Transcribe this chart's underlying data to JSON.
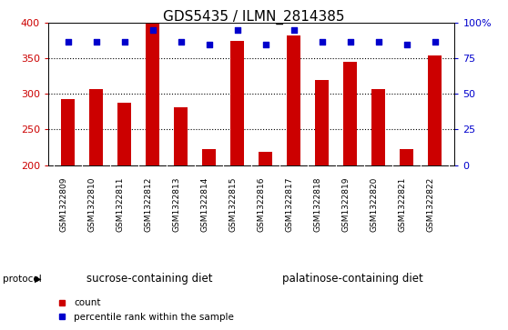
{
  "title": "GDS5435 / ILMN_2814385",
  "samples": [
    "GSM1322809",
    "GSM1322810",
    "GSM1322811",
    "GSM1322812",
    "GSM1322813",
    "GSM1322814",
    "GSM1322815",
    "GSM1322816",
    "GSM1322817",
    "GSM1322818",
    "GSM1322819",
    "GSM1322820",
    "GSM1322821",
    "GSM1322822"
  ],
  "counts": [
    293,
    307,
    288,
    400,
    282,
    222,
    375,
    218,
    383,
    320,
    345,
    307,
    222,
    354
  ],
  "percentiles": [
    87,
    87,
    87,
    95,
    87,
    85,
    95,
    85,
    95,
    87,
    87,
    87,
    85,
    87
  ],
  "groups": [
    {
      "label": "sucrose-containing diet",
      "start": 0,
      "end": 7
    },
    {
      "label": "palatinose-containing diet",
      "start": 7,
      "end": 14
    }
  ],
  "bar_color": "#CC0000",
  "dot_color": "#0000CC",
  "ylim_left": [
    200,
    400
  ],
  "ylim_right": [
    0,
    100
  ],
  "yticks_left": [
    200,
    250,
    300,
    350,
    400
  ],
  "yticks_right": [
    0,
    25,
    50,
    75,
    100
  ],
  "yticklabels_right": [
    "0",
    "25",
    "50",
    "75",
    "100%"
  ],
  "plot_bg_color": "#ffffff",
  "xtick_area_color": "#d3d3d3",
  "protocol_color": "#90EE90",
  "protocol_label": "protocol",
  "legend_count": "count",
  "legend_pct": "percentile rank within the sample",
  "title_fontsize": 11,
  "bar_width": 0.5
}
